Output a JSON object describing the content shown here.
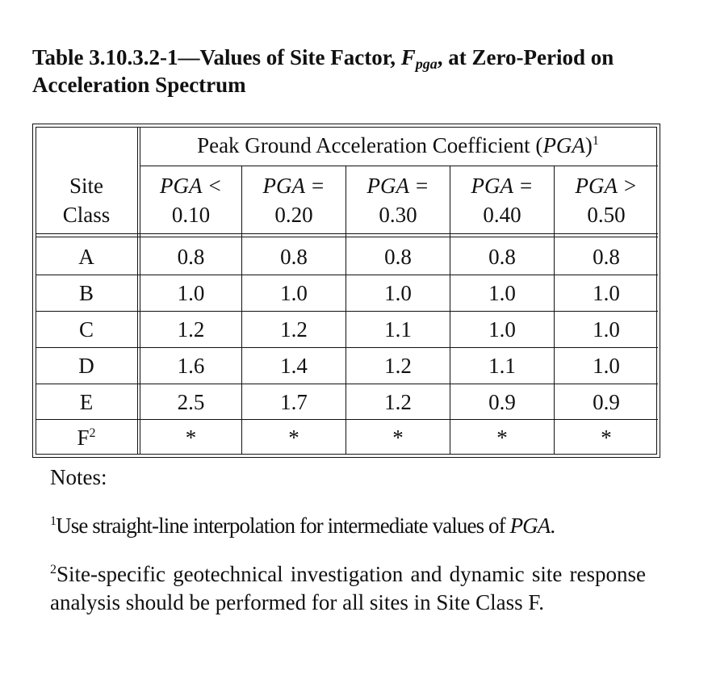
{
  "title": {
    "part1": "Table 3.10.3.2-1—Values of Site Factor, ",
    "factor_symbol": "F",
    "factor_subscript": "pga",
    "part2": ", at Zero-Period on Acceleration Spectrum"
  },
  "table": {
    "site_class_header_line1": "Site",
    "site_class_header_line2": "Class",
    "group_header": "Peak Ground Acceleration Coefficient (",
    "group_header_symbol": "PGA",
    "group_header_end": ")",
    "group_header_note": "1",
    "columns": [
      {
        "op": "PGA <",
        "value": "0.10"
      },
      {
        "op": "PGA =",
        "value": "0.20"
      },
      {
        "op": "PGA =",
        "value": "0.30"
      },
      {
        "op": "PGA =",
        "value": "0.40"
      },
      {
        "op": "PGA >",
        "value": "0.50"
      }
    ],
    "rows": [
      {
        "site_class": "A",
        "note": "",
        "values": [
          "0.8",
          "0.8",
          "0.8",
          "0.8",
          "0.8"
        ]
      },
      {
        "site_class": "B",
        "note": "",
        "values": [
          "1.0",
          "1.0",
          "1.0",
          "1.0",
          "1.0"
        ]
      },
      {
        "site_class": "C",
        "note": "",
        "values": [
          "1.2",
          "1.2",
          "1.1",
          "1.0",
          "1.0"
        ]
      },
      {
        "site_class": "D",
        "note": "",
        "values": [
          "1.6",
          "1.4",
          "1.2",
          "1.1",
          "1.0"
        ]
      },
      {
        "site_class": "E",
        "note": "",
        "values": [
          "2.5",
          "1.7",
          "1.2",
          "0.9",
          "0.9"
        ]
      },
      {
        "site_class": "F",
        "note": "2",
        "values": [
          "*",
          "*",
          "*",
          "*",
          "*"
        ]
      }
    ]
  },
  "notes": {
    "heading": "Notes:",
    "note1_number": "1",
    "note1_text": "Use straight-line interpolation for intermediate values of ",
    "note1_symbol": "PGA",
    "note1_end": ".",
    "note2_number": "2",
    "note2_text": "Site-specific geotechnical investigation and dynamic site response analysis should be performed for all sites in Site Class F."
  }
}
